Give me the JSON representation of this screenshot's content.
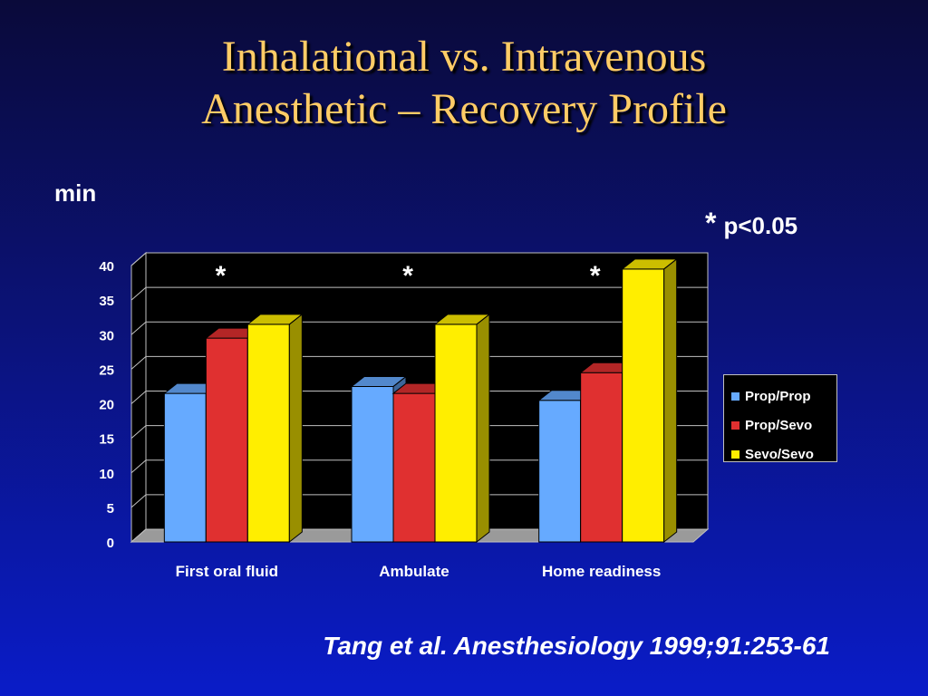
{
  "title": {
    "line1": "Inhalational vs. Intravenous",
    "line2": "Anesthetic – Recovery Profile"
  },
  "ylabel": "min",
  "significance": {
    "symbol": "*",
    "label": "p<0.05"
  },
  "citation": "Tang et al. Anesthesiology 1999;91:253-61",
  "chart_data": {
    "type": "bar",
    "categories": [
      "First oral fluid",
      "Ambulate",
      "Home readiness"
    ],
    "series": [
      {
        "name": "Prop/Prop",
        "values": [
          21.5,
          22.5,
          20.5
        ],
        "color": "#66aaff"
      },
      {
        "name": "Prop/Sevo",
        "values": [
          29.5,
          21.5,
          24.5
        ],
        "color": "#e03030"
      },
      {
        "name": "Sevo/Sevo",
        "values": [
          31.5,
          31.5,
          39.5
        ],
        "color": "#ffee00"
      }
    ],
    "ylim": [
      0,
      40
    ],
    "yticks": [
      "0",
      "5",
      "10",
      "15",
      "20",
      "25",
      "30",
      "35",
      "40"
    ],
    "annotations": [
      "*",
      "*",
      "*"
    ],
    "legend_position": "right",
    "grid": true,
    "plot_background": "#000000",
    "axis_text_color": "#ffffff"
  }
}
